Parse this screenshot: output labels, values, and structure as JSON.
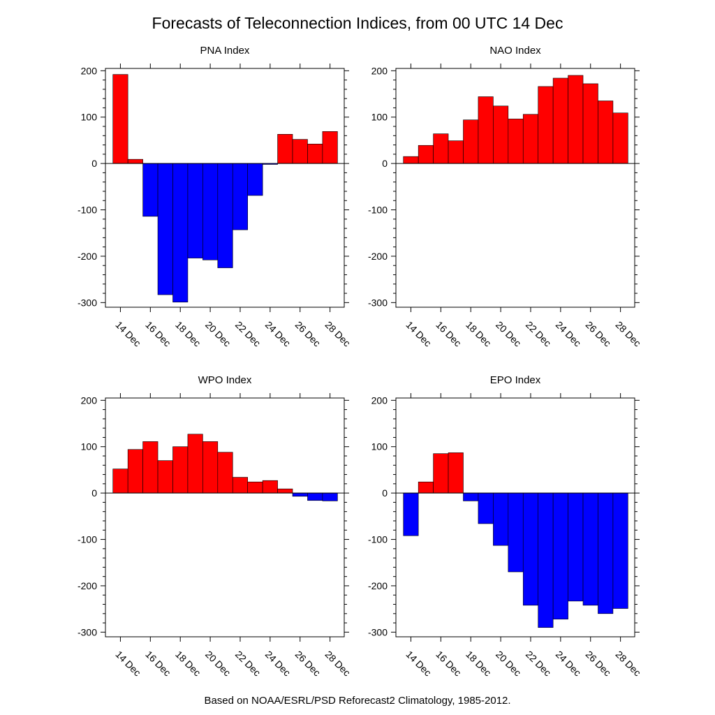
{
  "title": "Forecasts of Teleconnection Indices, from 00 UTC 14 Dec",
  "footer": "Based on NOAA/ESRL/PSD Reforecast2 Climatology, 1985-2012.",
  "colors": {
    "positive": "#ff0000",
    "negative": "#0000ff",
    "outline": "#000000"
  },
  "chart_data": [
    {
      "type": "bar",
      "title": "PNA Index",
      "x": [
        14,
        15,
        16,
        17,
        18,
        19,
        20,
        21,
        22,
        23,
        24,
        25,
        26,
        27,
        28
      ],
      "values": [
        192,
        9,
        -114,
        -283,
        -299,
        -204,
        -208,
        -225,
        -143,
        -69,
        -2,
        63,
        52,
        42,
        69
      ],
      "xticks": [
        "14 Dec",
        "16 Dec",
        "18 Dec",
        "20 Dec",
        "22 Dec",
        "24 Dec",
        "26 Dec",
        "28 Dec"
      ],
      "yticks": [
        "200",
        "100",
        "0",
        "-100",
        "-200",
        "-300"
      ],
      "ylim": [
        -310,
        205
      ],
      "xlim": [
        13.0,
        28.95
      ]
    },
    {
      "type": "bar",
      "title": "NAO Index",
      "x": [
        14,
        15,
        16,
        17,
        18,
        19,
        20,
        21,
        22,
        23,
        24,
        25,
        26,
        27,
        28
      ],
      "values": [
        15,
        39,
        64,
        49,
        94,
        144,
        124,
        96,
        106,
        166,
        184,
        190,
        172,
        135,
        109
      ],
      "xticks": [
        "14 Dec",
        "16 Dec",
        "18 Dec",
        "20 Dec",
        "22 Dec",
        "24 Dec",
        "26 Dec",
        "28 Dec"
      ],
      "yticks": [
        "200",
        "100",
        "0",
        "-100",
        "-200",
        "-300"
      ],
      "ylim": [
        -310,
        205
      ],
      "xlim": [
        13.0,
        28.95
      ]
    },
    {
      "type": "bar",
      "title": "WPO Index",
      "x": [
        14,
        15,
        16,
        17,
        18,
        19,
        20,
        21,
        22,
        23,
        24,
        25,
        26,
        27,
        28
      ],
      "values": [
        52,
        94,
        111,
        70,
        100,
        127,
        111,
        88,
        34,
        24,
        27,
        9,
        -7,
        -16,
        -17
      ],
      "xticks": [
        "14 Dec",
        "16 Dec",
        "18 Dec",
        "20 Dec",
        "22 Dec",
        "24 Dec",
        "26 Dec",
        "28 Dec"
      ],
      "yticks": [
        "200",
        "100",
        "0",
        "-100",
        "-200",
        "-300"
      ],
      "ylim": [
        -310,
        205
      ],
      "xlim": [
        13.0,
        28.95
      ]
    },
    {
      "type": "bar",
      "title": "EPO Index",
      "x": [
        14,
        15,
        16,
        17,
        18,
        19,
        20,
        21,
        22,
        23,
        24,
        25,
        26,
        27,
        28
      ],
      "values": [
        -92,
        24,
        85,
        87,
        -17,
        -66,
        -113,
        -170,
        -242,
        -290,
        -272,
        -233,
        -242,
        -260,
        -249
      ],
      "xticks": [
        "14 Dec",
        "16 Dec",
        "18 Dec",
        "20 Dec",
        "22 Dec",
        "24 Dec",
        "26 Dec",
        "28 Dec"
      ],
      "yticks": [
        "200",
        "100",
        "0",
        "-100",
        "-200",
        "-300"
      ],
      "ylim": [
        -310,
        205
      ],
      "xlim": [
        13.0,
        28.95
      ]
    }
  ]
}
